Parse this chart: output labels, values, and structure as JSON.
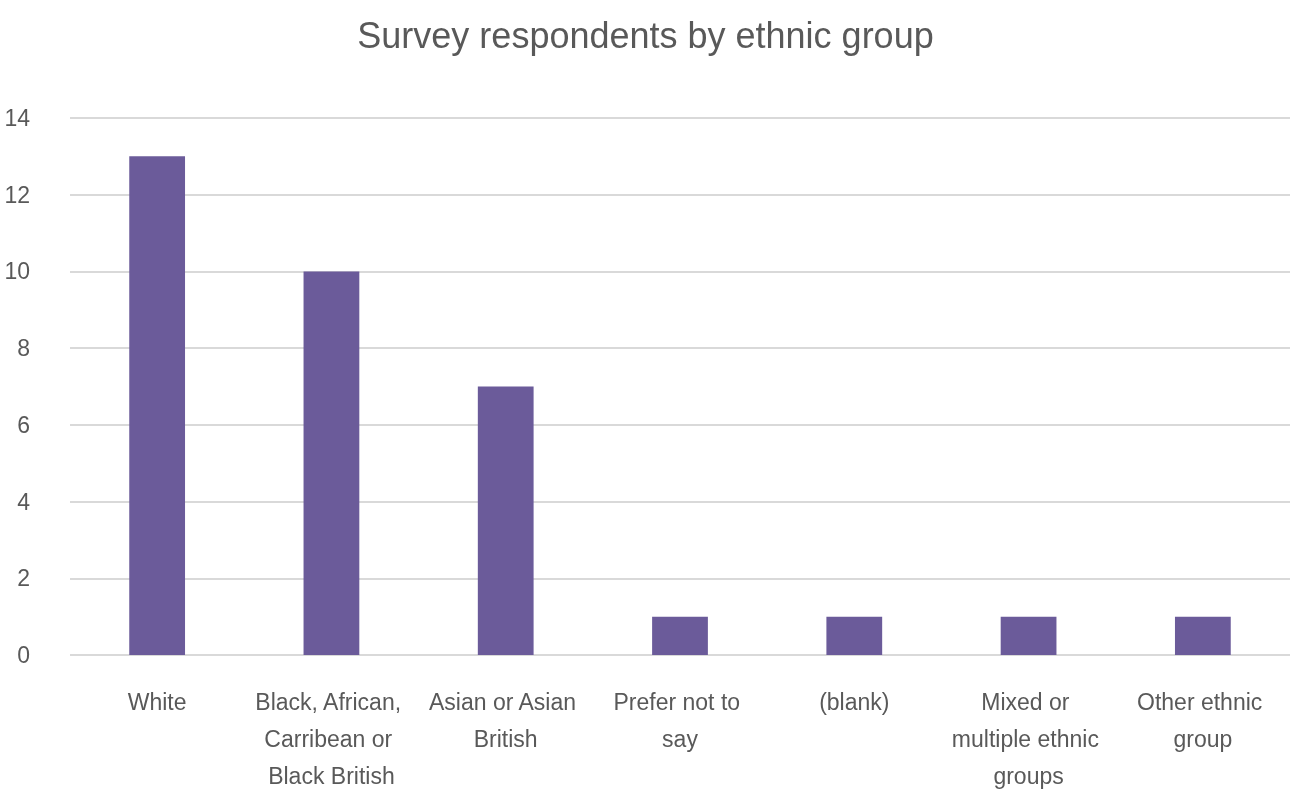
{
  "chart_data": {
    "type": "bar",
    "title": "Survey respondents by ethnic group",
    "categories": [
      "White",
      "Black, African, Carribean or Black British",
      "Asian or Asian British",
      "Prefer not to say",
      "(blank)",
      "Mixed or multiple ethnic groups",
      "Other ethnic group"
    ],
    "values": [
      13,
      10,
      7,
      1,
      1,
      1,
      1
    ],
    "color": "#6b5b9a",
    "ylim": [
      0,
      14
    ],
    "yticks": [
      0,
      2,
      4,
      6,
      8,
      10,
      12,
      14
    ],
    "grid": "y"
  }
}
